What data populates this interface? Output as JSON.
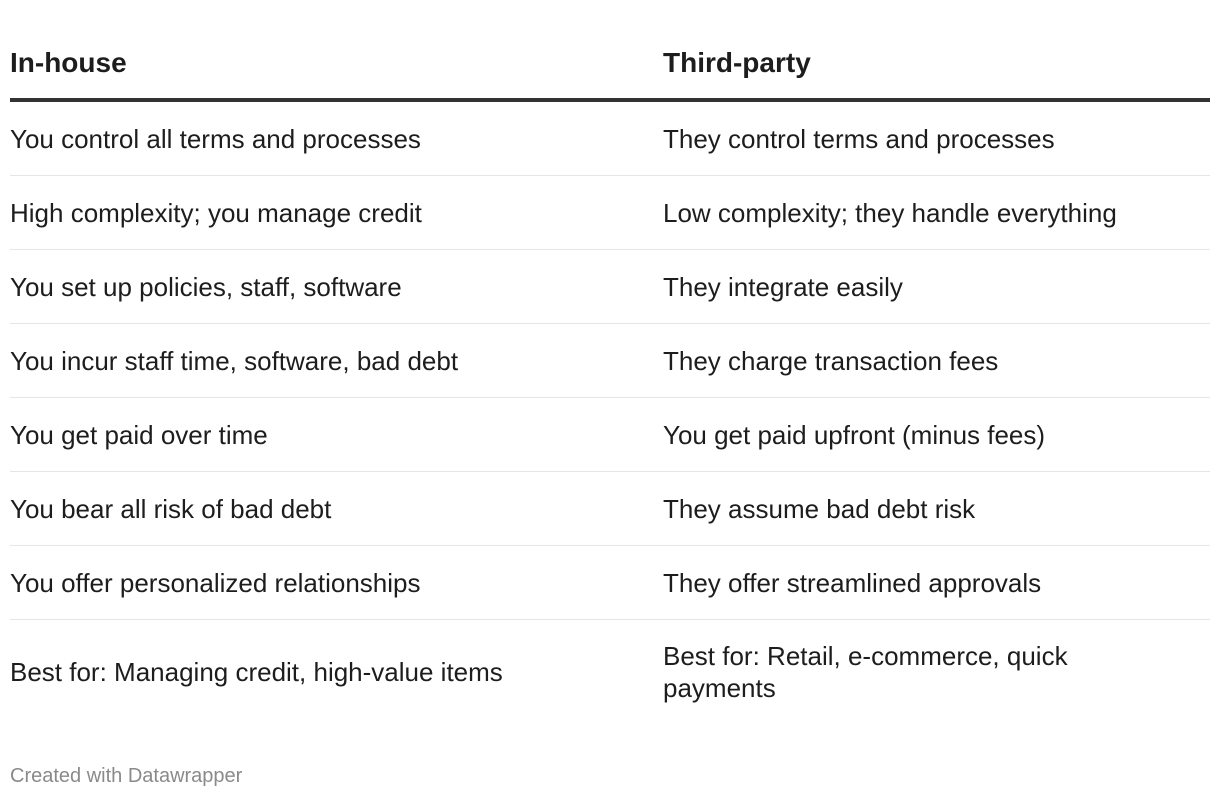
{
  "table": {
    "headers": [
      "In-house",
      "Third-party"
    ],
    "rows": [
      [
        "You control all terms and processes",
        "They control terms and processes"
      ],
      [
        "High complexity; you manage credit",
        "Low complexity; they handle everything"
      ],
      [
        "You set up policies, staff, software",
        "They integrate easily"
      ],
      [
        "You incur staff time, software, bad debt",
        "They charge transaction fees"
      ],
      [
        "You get paid over time",
        "You get paid upfront (minus fees)"
      ],
      [
        "You bear all risk of bad debt",
        "They assume bad debt risk"
      ],
      [
        "You offer personalized relationships",
        "They offer streamlined approvals"
      ],
      [
        "Best for: Managing credit, high-value items",
        "Best for: Retail, e-commerce, quick payments"
      ]
    ]
  },
  "footer": {
    "credit": "Created with Datawrapper"
  }
}
